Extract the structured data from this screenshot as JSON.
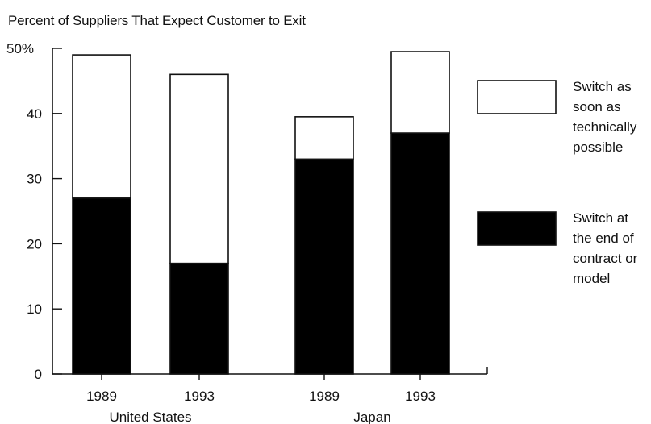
{
  "chart_data": {
    "type": "bar",
    "stacked": true,
    "title": "Percent of Suppliers That Expect Customer to Exit",
    "y_tick_labels": [
      "0",
      "10",
      "20",
      "30",
      "40",
      "50%"
    ],
    "ylim": [
      0,
      50
    ],
    "grid": false,
    "legend_position": "right",
    "categories": [
      {
        "year": "1989",
        "group": "United States"
      },
      {
        "year": "1993",
        "group": "United States"
      },
      {
        "year": "1989",
        "group": "Japan"
      },
      {
        "year": "1993",
        "group": "Japan"
      }
    ],
    "groups": [
      "United States",
      "Japan"
    ],
    "series": [
      {
        "name": "Switch at the end of contract or model",
        "color": "#000000",
        "values": [
          27,
          17,
          33,
          37
        ]
      },
      {
        "name": "Switch as soon as technically possible",
        "color": "#ffffff",
        "values": [
          22,
          29,
          6.5,
          12.5
        ]
      }
    ],
    "legend": [
      {
        "label": "Switch as\nsoon as\ntechnically\npossible",
        "color": "#ffffff"
      },
      {
        "label": "Switch at\nthe end of\ncontract or\nmodel",
        "color": "#000000"
      }
    ]
  }
}
